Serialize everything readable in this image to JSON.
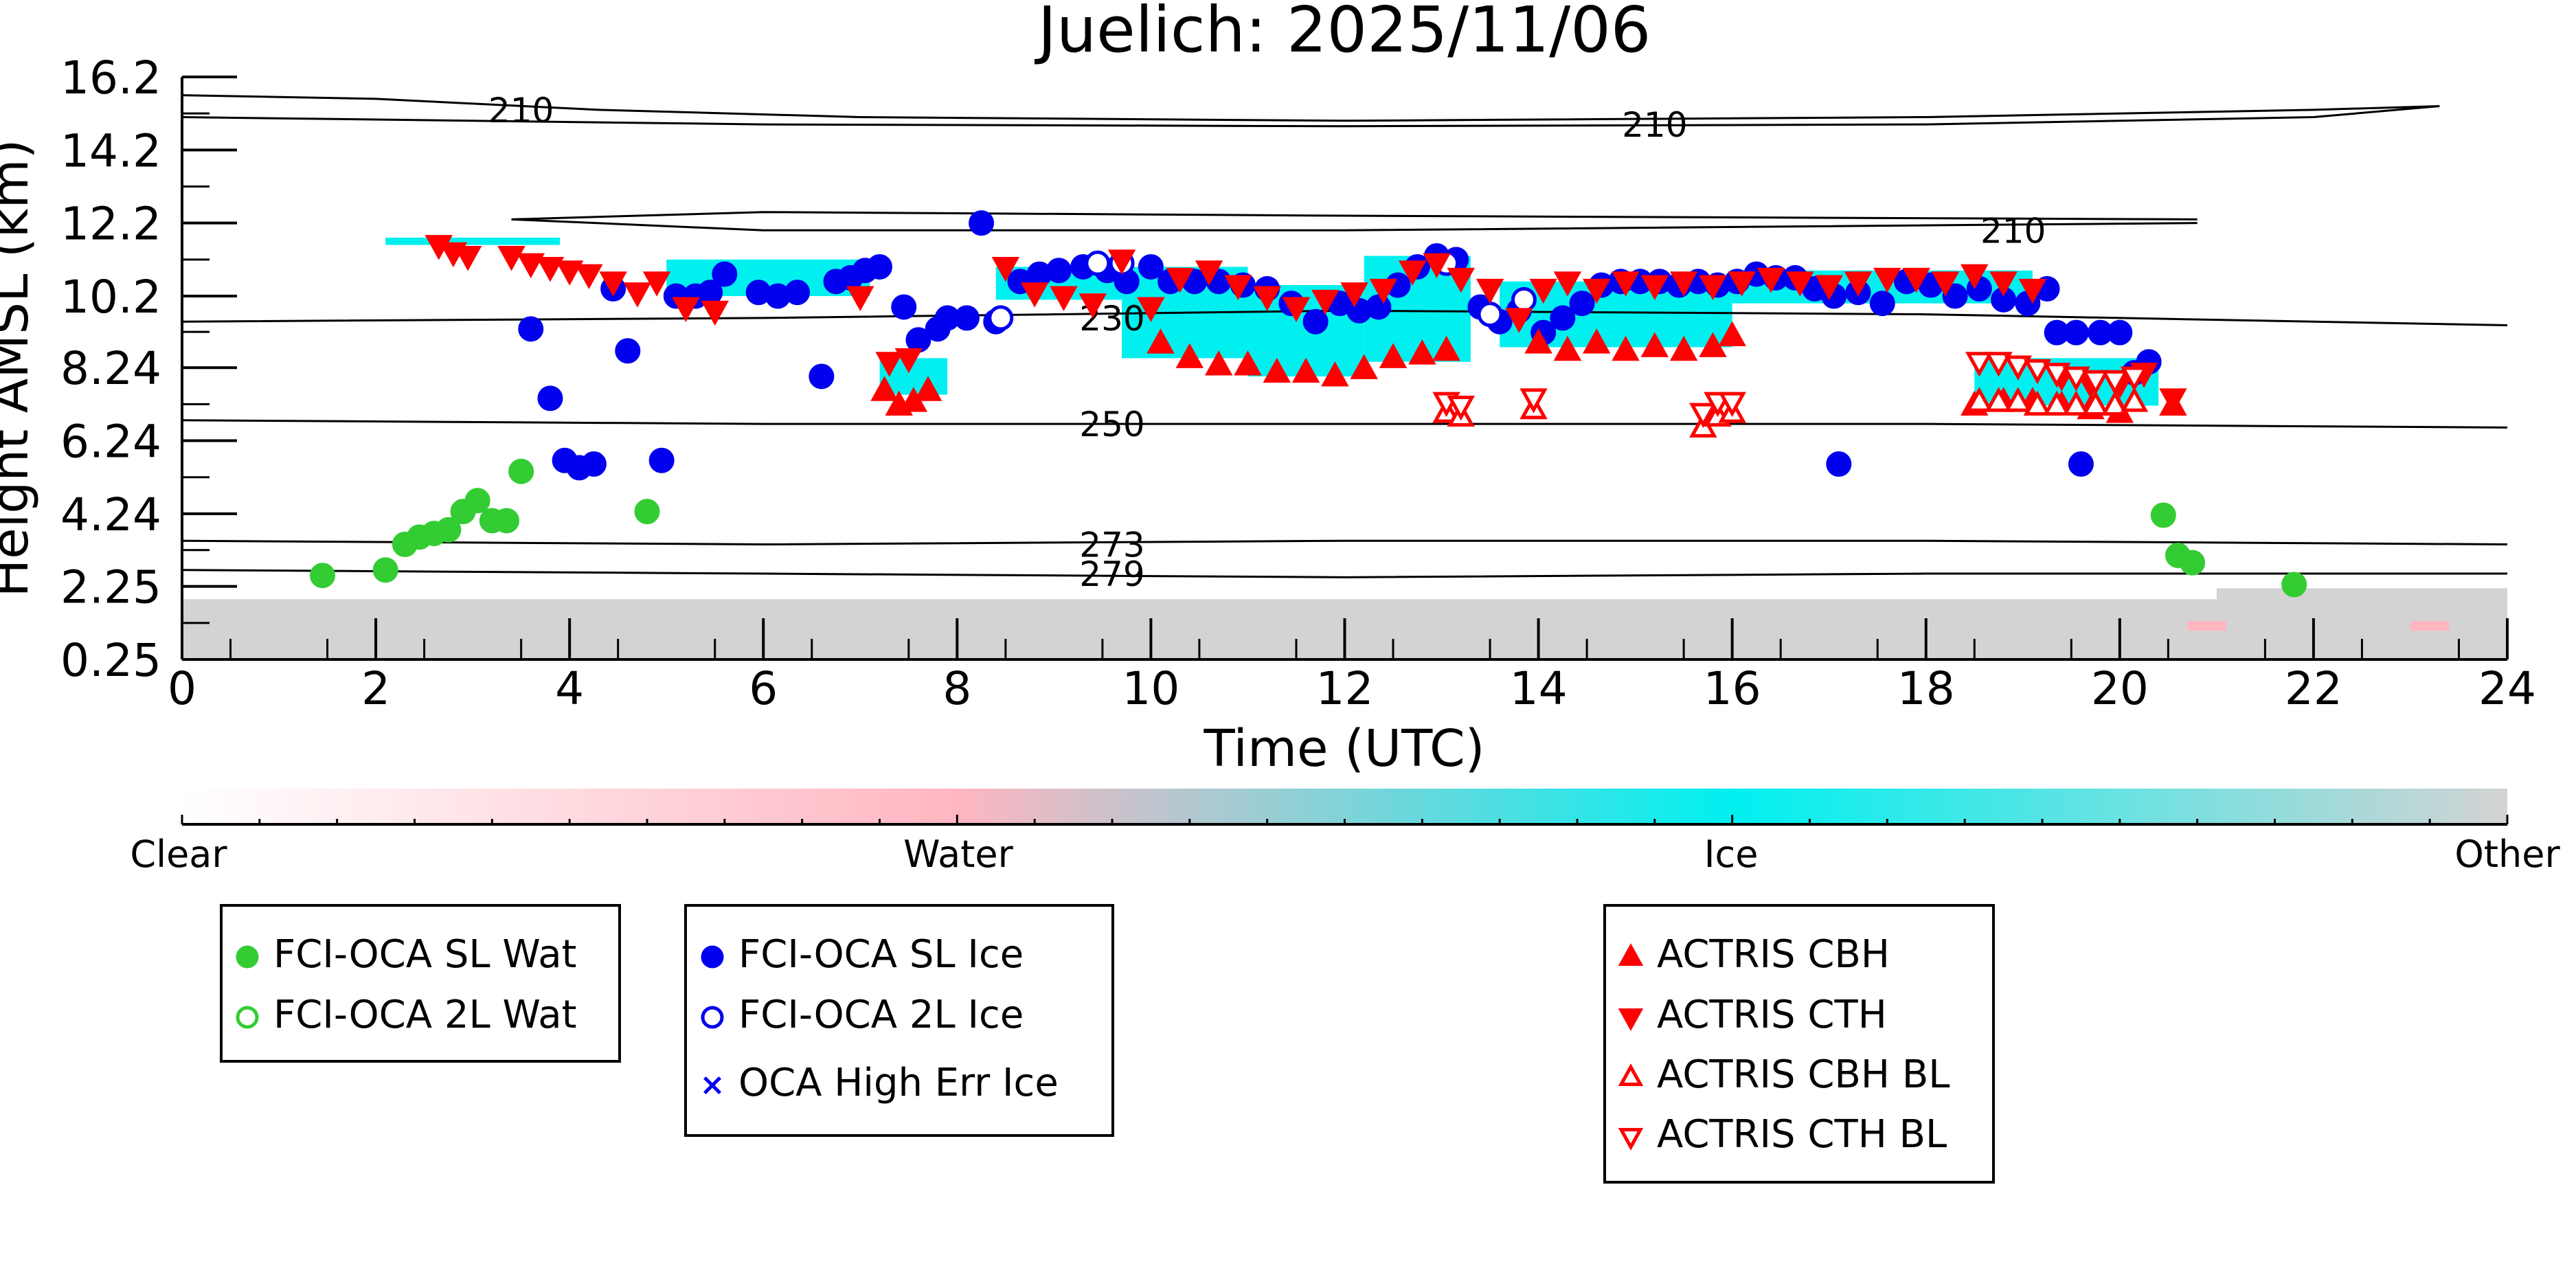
{
  "chart_data": {
    "type": "scatter",
    "title": "Juelich: 2025/11/06",
    "xlabel": "Time (UTC)",
    "ylabel": "Height AMSL (km)",
    "xlim": [
      0,
      24
    ],
    "ylim": [
      0.25,
      16.2
    ],
    "xticks": [
      "0",
      "2",
      "4",
      "6",
      "8",
      "10",
      "12",
      "14",
      "16",
      "18",
      "20",
      "22",
      "24"
    ],
    "yticks": [
      "0.25",
      "2.25",
      "4.24",
      "6.24",
      "8.24",
      "10.2",
      "12.2",
      "14.2",
      "16.2"
    ],
    "background": "cloud classification curtain (Clear / Water / Ice / Other)",
    "colorbar": {
      "labels": [
        "Clear",
        "Water",
        "Ice",
        "Other"
      ],
      "colors": [
        "#ffffff",
        "#ffb6c1",
        "#00f0f0",
        "#d3d3d3"
      ]
    },
    "contours": [
      {
        "label": "210",
        "label_x": 3.5,
        "label_y": 15.3
      },
      {
        "label": "210",
        "label_x": 15.2,
        "label_y": 14.9
      },
      {
        "label": "210",
        "label_x": 18.9,
        "label_y": 12.0
      },
      {
        "label": "230",
        "label_x": 9.6,
        "label_y": 9.6
      },
      {
        "label": "250",
        "label_x": 9.6,
        "label_y": 6.7
      },
      {
        "label": "273",
        "label_x": 9.6,
        "label_y": 3.4
      },
      {
        "label": "279",
        "label_x": 9.6,
        "label_y": 2.6
      }
    ],
    "series": [
      {
        "name": "FCI-OCA SL Wat",
        "color": "#33cc33",
        "marker": "filled-circle",
        "points": [
          [
            1.45,
            2.55
          ],
          [
            2.1,
            2.7
          ],
          [
            2.3,
            3.4
          ],
          [
            2.45,
            3.6
          ],
          [
            2.6,
            3.7
          ],
          [
            2.75,
            3.8
          ],
          [
            2.9,
            4.3
          ],
          [
            3.05,
            4.6
          ],
          [
            3.2,
            4.05
          ],
          [
            3.35,
            4.05
          ],
          [
            3.5,
            5.4
          ],
          [
            4.8,
            4.3
          ],
          [
            20.45,
            4.2
          ],
          [
            20.6,
            3.1
          ],
          [
            20.75,
            2.9
          ],
          [
            21.8,
            2.3
          ]
        ]
      },
      {
        "name": "FCI-OCA 2L Wat",
        "color": "#33cc33",
        "marker": "open-circle",
        "points": []
      },
      {
        "name": "FCI-OCA SL Ice",
        "color": "#0000ee",
        "marker": "filled-circle",
        "points": [
          [
            3.6,
            9.3
          ],
          [
            3.8,
            7.4
          ],
          [
            3.95,
            5.7
          ],
          [
            4.1,
            5.5
          ],
          [
            4.25,
            5.6
          ],
          [
            4.45,
            10.4
          ],
          [
            4.6,
            8.7
          ],
          [
            4.95,
            5.7
          ],
          [
            5.1,
            10.2
          ],
          [
            5.3,
            10.2
          ],
          [
            5.45,
            10.3
          ],
          [
            5.6,
            10.8
          ],
          [
            5.95,
            10.3
          ],
          [
            6.15,
            10.2
          ],
          [
            6.35,
            10.3
          ],
          [
            6.6,
            8.0
          ],
          [
            6.75,
            10.6
          ],
          [
            6.9,
            10.7
          ],
          [
            7.05,
            10.9
          ],
          [
            7.2,
            11.0
          ],
          [
            7.45,
            9.9
          ],
          [
            7.6,
            9.0
          ],
          [
            7.8,
            9.3
          ],
          [
            7.9,
            9.6
          ],
          [
            8.1,
            9.6
          ],
          [
            8.25,
            12.2
          ],
          [
            8.4,
            9.5
          ],
          [
            8.65,
            10.6
          ],
          [
            8.85,
            10.8
          ],
          [
            9.05,
            10.9
          ],
          [
            9.3,
            11.0
          ],
          [
            9.55,
            10.9
          ],
          [
            9.75,
            10.6
          ],
          [
            10.0,
            11.0
          ],
          [
            10.2,
            10.6
          ],
          [
            10.45,
            10.6
          ],
          [
            10.7,
            10.6
          ],
          [
            10.95,
            10.5
          ],
          [
            11.2,
            10.4
          ],
          [
            11.45,
            10.0
          ],
          [
            11.7,
            9.5
          ],
          [
            11.95,
            10.0
          ],
          [
            12.15,
            9.8
          ],
          [
            12.35,
            9.9
          ],
          [
            12.55,
            10.5
          ],
          [
            12.75,
            11.0
          ],
          [
            12.95,
            11.3
          ],
          [
            13.15,
            11.2
          ],
          [
            13.4,
            9.9
          ],
          [
            13.6,
            9.5
          ],
          [
            13.8,
            9.8
          ],
          [
            14.05,
            9.2
          ],
          [
            14.25,
            9.6
          ],
          [
            14.45,
            10.0
          ],
          [
            14.65,
            10.5
          ],
          [
            14.85,
            10.6
          ],
          [
            15.05,
            10.6
          ],
          [
            15.25,
            10.6
          ],
          [
            15.45,
            10.5
          ],
          [
            15.65,
            10.6
          ],
          [
            15.85,
            10.5
          ],
          [
            16.05,
            10.6
          ],
          [
            16.25,
            10.8
          ],
          [
            16.45,
            10.7
          ],
          [
            16.65,
            10.7
          ],
          [
            16.85,
            10.4
          ],
          [
            17.05,
            10.2
          ],
          [
            17.1,
            5.6
          ],
          [
            17.3,
            10.3
          ],
          [
            17.55,
            10.0
          ],
          [
            17.8,
            10.6
          ],
          [
            18.05,
            10.5
          ],
          [
            18.3,
            10.2
          ],
          [
            18.55,
            10.4
          ],
          [
            18.8,
            10.1
          ],
          [
            19.05,
            10.0
          ],
          [
            19.25,
            10.4
          ],
          [
            19.35,
            9.2
          ],
          [
            19.55,
            9.2
          ],
          [
            19.6,
            5.6
          ],
          [
            19.8,
            9.2
          ],
          [
            20.0,
            9.2
          ],
          [
            20.15,
            8.1
          ],
          [
            20.3,
            8.4
          ]
        ]
      },
      {
        "name": "FCI-OCA 2L Ice",
        "color": "#0000ee",
        "marker": "open-circle",
        "points": [
          [
            8.45,
            9.6
          ],
          [
            9.45,
            11.1
          ],
          [
            9.7,
            11.1
          ],
          [
            13.05,
            11.1
          ],
          [
            13.5,
            9.7
          ],
          [
            13.85,
            10.1
          ]
        ]
      },
      {
        "name": "OCA High Err Ice",
        "color": "#0000ee",
        "marker": "x",
        "points": []
      },
      {
        "name": "ACTRIS CBH",
        "color": "#ff0000",
        "marker": "triangle-up",
        "points": [
          [
            7.25,
            7.6
          ],
          [
            7.4,
            7.2
          ],
          [
            7.55,
            7.3
          ],
          [
            7.7,
            7.6
          ],
          [
            10.1,
            8.9
          ],
          [
            10.4,
            8.5
          ],
          [
            10.7,
            8.3
          ],
          [
            11.0,
            8.3
          ],
          [
            11.3,
            8.1
          ],
          [
            11.6,
            8.1
          ],
          [
            11.9,
            8.0
          ],
          [
            12.2,
            8.2
          ],
          [
            12.5,
            8.5
          ],
          [
            12.8,
            8.6
          ],
          [
            13.05,
            8.7
          ],
          [
            14.0,
            8.9
          ],
          [
            14.3,
            8.7
          ],
          [
            14.6,
            8.9
          ],
          [
            14.9,
            8.7
          ],
          [
            15.2,
            8.8
          ],
          [
            15.5,
            8.7
          ],
          [
            15.8,
            8.8
          ],
          [
            16.0,
            9.1
          ],
          [
            18.5,
            7.2
          ],
          [
            18.8,
            7.3
          ],
          [
            19.1,
            7.3
          ],
          [
            19.4,
            7.2
          ],
          [
            19.7,
            7.1
          ],
          [
            20.0,
            7.0
          ],
          [
            20.55,
            7.2
          ]
        ]
      },
      {
        "name": "ACTRIS CTH",
        "color": "#ff0000",
        "marker": "triangle-down",
        "points": [
          [
            2.65,
            11.6
          ],
          [
            2.8,
            11.4
          ],
          [
            2.95,
            11.3
          ],
          [
            3.4,
            11.3
          ],
          [
            3.6,
            11.1
          ],
          [
            3.8,
            11.0
          ],
          [
            4.0,
            10.9
          ],
          [
            4.2,
            10.8
          ],
          [
            4.45,
            10.6
          ],
          [
            4.7,
            10.3
          ],
          [
            4.9,
            10.6
          ],
          [
            5.2,
            9.9
          ],
          [
            5.5,
            9.8
          ],
          [
            7.0,
            10.2
          ],
          [
            7.3,
            8.4
          ],
          [
            7.5,
            8.5
          ],
          [
            8.5,
            11.0
          ],
          [
            8.8,
            10.3
          ],
          [
            9.1,
            10.2
          ],
          [
            9.4,
            10.0
          ],
          [
            9.7,
            11.2
          ],
          [
            10.0,
            9.9
          ],
          [
            10.3,
            10.7
          ],
          [
            10.6,
            10.9
          ],
          [
            10.9,
            10.5
          ],
          [
            11.2,
            10.2
          ],
          [
            11.5,
            9.9
          ],
          [
            11.8,
            10.1
          ],
          [
            12.1,
            10.3
          ],
          [
            12.4,
            10.4
          ],
          [
            12.7,
            10.9
          ],
          [
            12.95,
            11.1
          ],
          [
            13.2,
            10.7
          ],
          [
            13.5,
            10.4
          ],
          [
            13.8,
            9.6
          ],
          [
            14.05,
            10.4
          ],
          [
            14.3,
            10.6
          ],
          [
            14.6,
            10.4
          ],
          [
            14.9,
            10.6
          ],
          [
            15.2,
            10.5
          ],
          [
            15.5,
            10.6
          ],
          [
            15.8,
            10.5
          ],
          [
            16.1,
            10.6
          ],
          [
            16.4,
            10.7
          ],
          [
            16.7,
            10.6
          ],
          [
            17.0,
            10.5
          ],
          [
            17.3,
            10.6
          ],
          [
            17.6,
            10.7
          ],
          [
            17.9,
            10.7
          ],
          [
            18.2,
            10.6
          ],
          [
            18.5,
            10.8
          ],
          [
            18.8,
            10.6
          ],
          [
            19.1,
            10.4
          ],
          [
            19.4,
            8.0
          ],
          [
            19.7,
            7.8
          ],
          [
            20.0,
            7.8
          ],
          [
            20.25,
            8.1
          ],
          [
            20.55,
            7.4
          ]
        ]
      },
      {
        "name": "ACTRIS CBH BL",
        "color": "#ff0000",
        "marker": "open-triangle-up",
        "points": [
          [
            13.05,
            7.0
          ],
          [
            13.2,
            6.9
          ],
          [
            13.95,
            7.1
          ],
          [
            15.7,
            6.6
          ],
          [
            15.85,
            6.9
          ],
          [
            16.0,
            7.0
          ],
          [
            18.55,
            7.3
          ],
          [
            18.75,
            7.3
          ],
          [
            18.95,
            7.3
          ],
          [
            19.15,
            7.2
          ],
          [
            19.35,
            7.2
          ],
          [
            19.55,
            7.2
          ],
          [
            19.75,
            7.2
          ],
          [
            19.95,
            7.2
          ],
          [
            20.15,
            7.3
          ]
        ]
      },
      {
        "name": "ACTRIS CTH BL",
        "color": "#ff0000",
        "marker": "open-triangle-down",
        "points": [
          [
            13.05,
            7.3
          ],
          [
            13.2,
            7.2
          ],
          [
            13.95,
            7.4
          ],
          [
            15.7,
            7.0
          ],
          [
            15.85,
            7.3
          ],
          [
            16.0,
            7.3
          ],
          [
            18.55,
            8.4
          ],
          [
            18.75,
            8.4
          ],
          [
            18.95,
            8.3
          ],
          [
            19.15,
            8.2
          ],
          [
            19.35,
            8.1
          ],
          [
            19.55,
            8.0
          ],
          [
            19.75,
            7.9
          ],
          [
            19.95,
            7.9
          ],
          [
            20.15,
            8.0
          ]
        ]
      }
    ],
    "legends": [
      [
        "FCI-OCA SL Wat",
        "FCI-OCA 2L Wat"
      ],
      [
        "FCI-OCA SL Ice",
        "FCI-OCA 2L Ice",
        "OCA High Err Ice"
      ],
      [
        "ACTRIS CBH",
        "ACTRIS CTH",
        "ACTRIS CBH BL",
        "ACTRIS CTH BL"
      ]
    ]
  }
}
